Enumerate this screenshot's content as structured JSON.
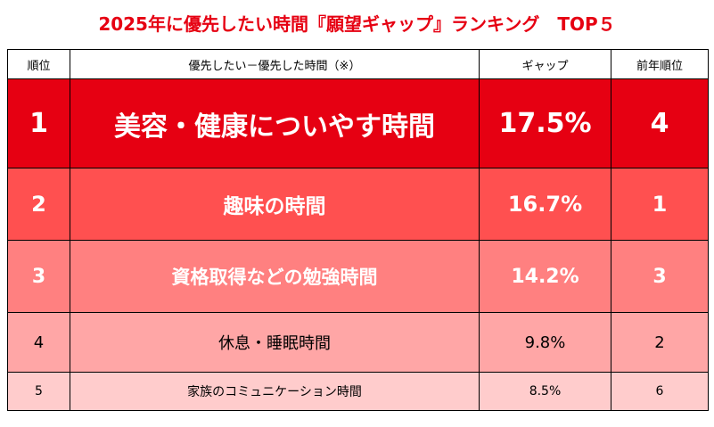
{
  "title": "2025年に優先したい時間『願望ギャップ』ランキング　TOP５",
  "table": {
    "headers": {
      "rank": "順位",
      "item": "優先したい－優先した時間（※）",
      "gap": "ギャップ",
      "prev_rank": "前年順位"
    },
    "rows": [
      {
        "rank": "1",
        "item": "美容・健康についやす時間",
        "gap": "17.5%",
        "prev_rank": "4"
      },
      {
        "rank": "2",
        "item": "趣味の時間",
        "gap": "16.7%",
        "prev_rank": "1"
      },
      {
        "rank": "3",
        "item": "資格取得などの勉強時間",
        "gap": "14.2%",
        "prev_rank": "3"
      },
      {
        "rank": "4",
        "item": "休息・睡眠時間",
        "gap": "9.8%",
        "prev_rank": "2"
      },
      {
        "rank": "5",
        "item": "家族のコミュニケーション時間",
        "gap": "8.5%",
        "prev_rank": "6"
      }
    ]
  },
  "colors": {
    "title": "#e60012",
    "rank1_fill": "#e60012",
    "rank2_fill": "#ff5050",
    "rank3_fill": "#ff8080",
    "rank4_fill": "#ffa6a6",
    "rank5_fill": "#ffcccc"
  }
}
